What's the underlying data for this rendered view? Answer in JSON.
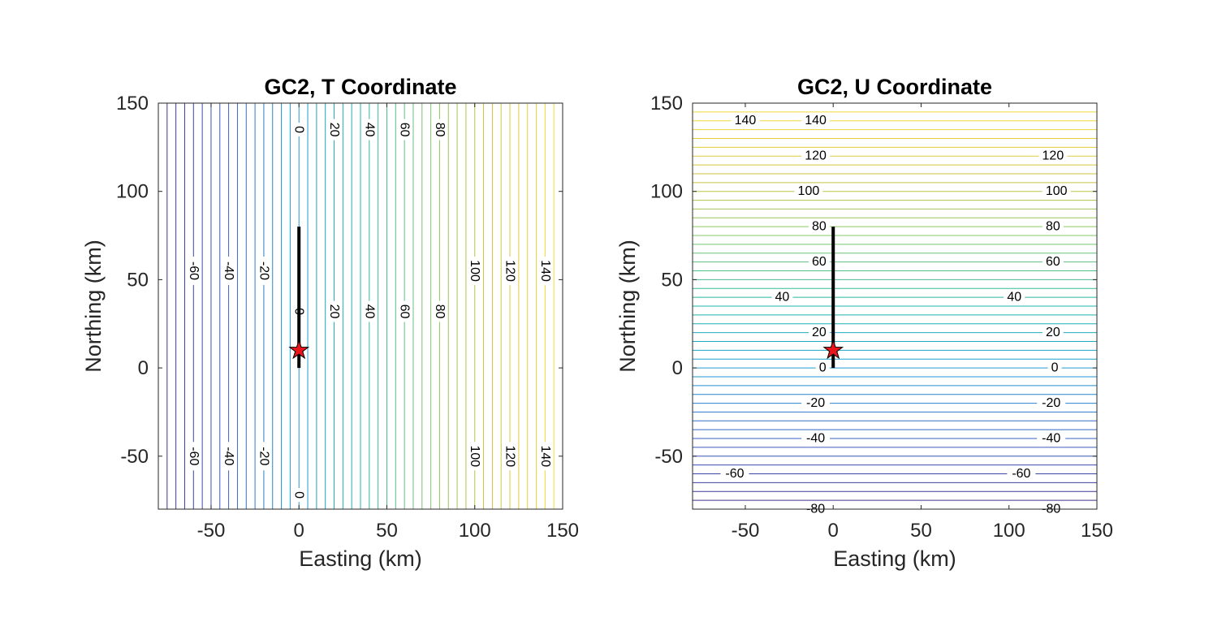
{
  "chart_data": [
    {
      "type": "contour",
      "title": "GC2, T Coordinate",
      "xlabel": "Easting (km)",
      "ylabel": "Northing (km)",
      "xlim": [
        -80,
        150
      ],
      "ylim": [
        -80,
        150
      ],
      "xticks": [
        -50,
        0,
        50,
        100,
        150
      ],
      "yticks": [
        -50,
        0,
        50,
        100,
        150
      ],
      "contour_orientation": "vertical",
      "level_range": [
        -80,
        150
      ],
      "level_step": 5,
      "colormap": [
        "#3e2c8a",
        "#3a5ec4",
        "#1f9bd6",
        "#1fb5a8",
        "#7cc86a",
        "#d6c23c",
        "#f5e03a"
      ],
      "labels": [
        {
          "text": "0",
          "at": [
            0,
            135
          ]
        },
        {
          "text": "20",
          "at": [
            20,
            135
          ]
        },
        {
          "text": "40",
          "at": [
            40,
            135
          ]
        },
        {
          "text": "60",
          "at": [
            60,
            135
          ]
        },
        {
          "text": "80",
          "at": [
            80,
            135
          ]
        },
        {
          "text": "-60",
          "at": [
            -60,
            55
          ]
        },
        {
          "text": "-40",
          "at": [
            -40,
            55
          ]
        },
        {
          "text": "-20",
          "at": [
            -20,
            55
          ]
        },
        {
          "text": "100",
          "at": [
            100,
            55
          ]
        },
        {
          "text": "120",
          "at": [
            120,
            55
          ]
        },
        {
          "text": "140",
          "at": [
            140,
            55
          ]
        },
        {
          "text": "0",
          "at": [
            0,
            32
          ]
        },
        {
          "text": "20",
          "at": [
            20,
            32
          ]
        },
        {
          "text": "40",
          "at": [
            40,
            32
          ]
        },
        {
          "text": "60",
          "at": [
            60,
            32
          ]
        },
        {
          "text": "80",
          "at": [
            80,
            32
          ]
        },
        {
          "text": "-60",
          "at": [
            -60,
            -50
          ]
        },
        {
          "text": "-40",
          "at": [
            -40,
            -50
          ]
        },
        {
          "text": "-20",
          "at": [
            -20,
            -50
          ]
        },
        {
          "text": "100",
          "at": [
            100,
            -50
          ]
        },
        {
          "text": "120",
          "at": [
            120,
            -50
          ]
        },
        {
          "text": "140",
          "at": [
            140,
            -50
          ]
        },
        {
          "text": "0",
          "at": [
            0,
            -72
          ]
        }
      ],
      "fault_trace": [
        [
          0,
          0
        ],
        [
          0,
          80
        ]
      ],
      "epicenter": [
        0,
        10
      ]
    },
    {
      "type": "contour",
      "title": "GC2, U Coordinate",
      "xlabel": "Easting (km)",
      "ylabel": "Northing (km)",
      "xlim": [
        -80,
        150
      ],
      "ylim": [
        -80,
        150
      ],
      "xticks": [
        -50,
        0,
        50,
        100,
        150
      ],
      "yticks": [
        -50,
        0,
        50,
        100,
        150
      ],
      "contour_orientation": "horizontal",
      "level_range": [
        -80,
        150
      ],
      "level_step": 5,
      "colormap": [
        "#3e2c8a",
        "#3a5ec4",
        "#1f9bd6",
        "#1fb5a8",
        "#7cc86a",
        "#d6c23c",
        "#f5e03a"
      ],
      "labels": [
        {
          "text": "140",
          "at": [
            -50,
            140
          ]
        },
        {
          "text": "140",
          "at": [
            -10,
            140
          ]
        },
        {
          "text": "120",
          "at": [
            -10,
            120
          ]
        },
        {
          "text": "120",
          "at": [
            125,
            120
          ]
        },
        {
          "text": "100",
          "at": [
            -14,
            100
          ]
        },
        {
          "text": "100",
          "at": [
            127,
            100
          ]
        },
        {
          "text": "80",
          "at": [
            -8,
            80
          ]
        },
        {
          "text": "80",
          "at": [
            125,
            80
          ]
        },
        {
          "text": "60",
          "at": [
            -8,
            60
          ]
        },
        {
          "text": "60",
          "at": [
            125,
            60
          ]
        },
        {
          "text": "40",
          "at": [
            -29,
            40
          ]
        },
        {
          "text": "40",
          "at": [
            103,
            40
          ]
        },
        {
          "text": "20",
          "at": [
            -8,
            20
          ]
        },
        {
          "text": "20",
          "at": [
            125,
            20
          ]
        },
        {
          "text": "0",
          "at": [
            -6,
            0
          ]
        },
        {
          "text": "0",
          "at": [
            126,
            0
          ]
        },
        {
          "text": "-20",
          "at": [
            -10,
            -20
          ]
        },
        {
          "text": "-20",
          "at": [
            124,
            -20
          ]
        },
        {
          "text": "-40",
          "at": [
            -10,
            -40
          ]
        },
        {
          "text": "-40",
          "at": [
            124,
            -40
          ]
        },
        {
          "text": "-60",
          "at": [
            -56,
            -60
          ]
        },
        {
          "text": "-60",
          "at": [
            107,
            -60
          ]
        },
        {
          "text": "-80",
          "at": [
            -10,
            -80
          ]
        },
        {
          "text": "-80",
          "at": [
            124,
            -80
          ]
        }
      ],
      "fault_trace": [
        [
          0,
          0
        ],
        [
          0,
          80
        ]
      ],
      "epicenter": [
        0,
        10
      ]
    }
  ]
}
